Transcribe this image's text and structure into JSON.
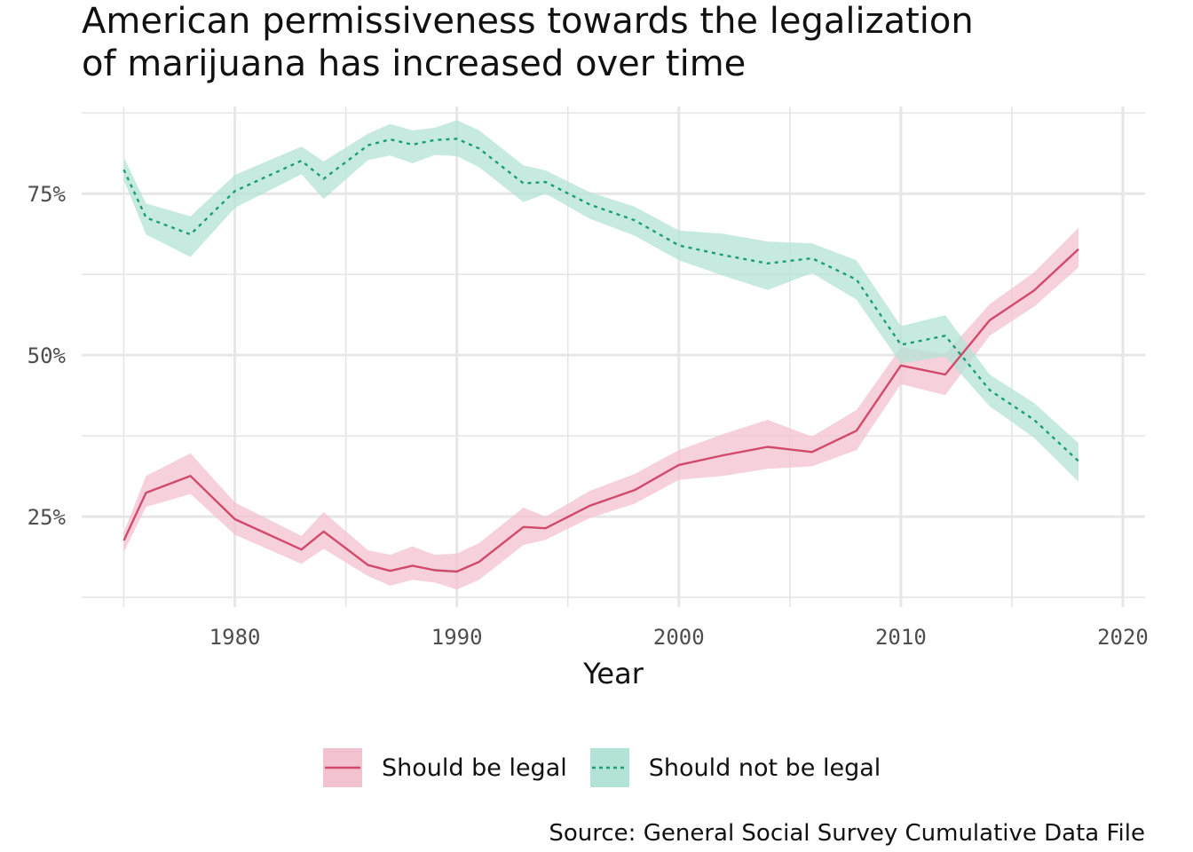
{
  "title_lines": [
    "American permissiveness towards the legalization",
    "of marijuana has increased over time"
  ],
  "caption": "Source: General Social Survey Cumulative Data File",
  "colors": {
    "legal_line": "#d1496b",
    "legal_band": "#f3c2cf",
    "not_legal_line": "#1b9e77",
    "not_legal_band": "#b3e3d6",
    "grid": "#e6e6e6"
  },
  "chart_data": {
    "type": "line",
    "title": "American permissiveness towards the legalization of marijuana has increased over time",
    "xlabel": "Year",
    "ylabel": "",
    "xlim": [
      1973.1,
      2021.0
    ],
    "ylim": [
      0.11,
      0.885
    ],
    "x_ticks": [
      1980,
      1990,
      2000,
      2010,
      2020
    ],
    "y_ticks": [
      0.25,
      0.5,
      0.75
    ],
    "y_tick_labels": [
      "25%",
      "50%",
      "75%"
    ],
    "grid": true,
    "legend_position": "bottom",
    "series": [
      {
        "name": "Should be legal",
        "line": "solid",
        "x": [
          1975,
          1976,
          1978,
          1980,
          1983,
          1984,
          1986,
          1987,
          1988,
          1989,
          1990,
          1991,
          1993,
          1994,
          1996,
          1998,
          2000,
          2002,
          2004,
          2006,
          2008,
          2010,
          2012,
          2014,
          2016,
          2018
        ],
        "y": [
          0.213,
          0.287,
          0.313,
          0.246,
          0.199,
          0.227,
          0.175,
          0.166,
          0.174,
          0.167,
          0.165,
          0.18,
          0.234,
          0.232,
          0.267,
          0.291,
          0.33,
          0.345,
          0.358,
          0.35,
          0.383,
          0.484,
          0.47,
          0.554,
          0.6,
          0.664
        ],
        "lower": [
          0.195,
          0.265,
          0.285,
          0.222,
          0.177,
          0.2,
          0.158,
          0.143,
          0.152,
          0.148,
          0.137,
          0.152,
          0.206,
          0.214,
          0.248,
          0.27,
          0.307,
          0.313,
          0.324,
          0.328,
          0.353,
          0.455,
          0.438,
          0.53,
          0.575,
          0.636
        ],
        "upper": [
          0.226,
          0.313,
          0.348,
          0.272,
          0.22,
          0.257,
          0.198,
          0.191,
          0.204,
          0.191,
          0.193,
          0.209,
          0.264,
          0.25,
          0.29,
          0.316,
          0.353,
          0.378,
          0.4,
          0.374,
          0.415,
          0.512,
          0.502,
          0.579,
          0.628,
          0.697
        ]
      },
      {
        "name": "Should not be legal",
        "line": "dotted",
        "x": [
          1975,
          1976,
          1978,
          1980,
          1983,
          1984,
          1986,
          1987,
          1988,
          1989,
          1990,
          1991,
          1993,
          1994,
          1996,
          1998,
          2000,
          2002,
          2004,
          2006,
          2008,
          2010,
          2012,
          2014,
          2016,
          2018
        ],
        "y": [
          0.787,
          0.713,
          0.687,
          0.754,
          0.801,
          0.773,
          0.825,
          0.834,
          0.826,
          0.833,
          0.835,
          0.82,
          0.766,
          0.768,
          0.733,
          0.709,
          0.67,
          0.655,
          0.642,
          0.65,
          0.617,
          0.516,
          0.53,
          0.446,
          0.4,
          0.336
        ],
        "lower": [
          0.771,
          0.687,
          0.652,
          0.728,
          0.78,
          0.742,
          0.802,
          0.809,
          0.797,
          0.81,
          0.808,
          0.791,
          0.737,
          0.75,
          0.711,
          0.685,
          0.647,
          0.623,
          0.601,
          0.627,
          0.586,
          0.487,
          0.498,
          0.421,
          0.372,
          0.304
        ],
        "upper": [
          0.806,
          0.735,
          0.715,
          0.779,
          0.823,
          0.8,
          0.843,
          0.858,
          0.848,
          0.852,
          0.864,
          0.848,
          0.794,
          0.786,
          0.752,
          0.73,
          0.693,
          0.688,
          0.676,
          0.673,
          0.647,
          0.545,
          0.562,
          0.47,
          0.426,
          0.364
        ]
      }
    ]
  }
}
